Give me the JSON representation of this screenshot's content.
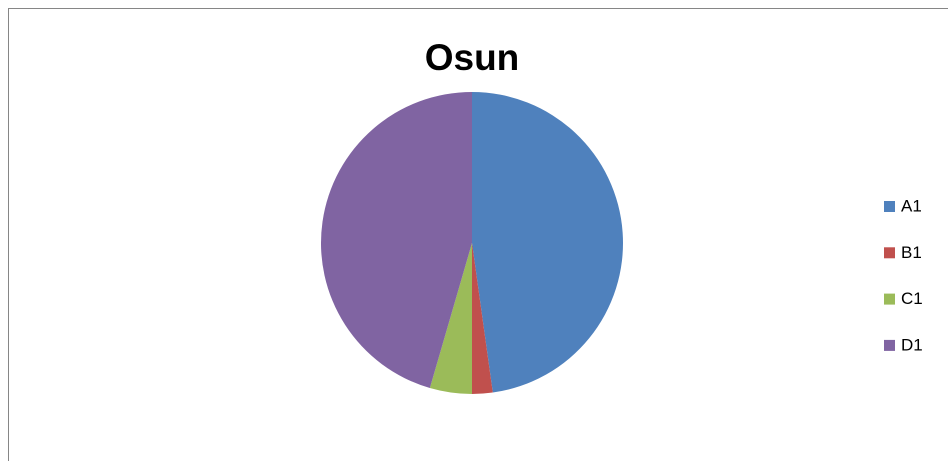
{
  "chart_data": {
    "type": "pie",
    "title": "Osun",
    "categories": [
      "A1",
      "B1",
      "C1",
      "D1"
    ],
    "values": [
      47.8,
      2.2,
      4.5,
      45.5
    ],
    "colors": [
      "#4f81bd",
      "#c0504d",
      "#9bbb59",
      "#8064a2"
    ],
    "legend": "right"
  }
}
